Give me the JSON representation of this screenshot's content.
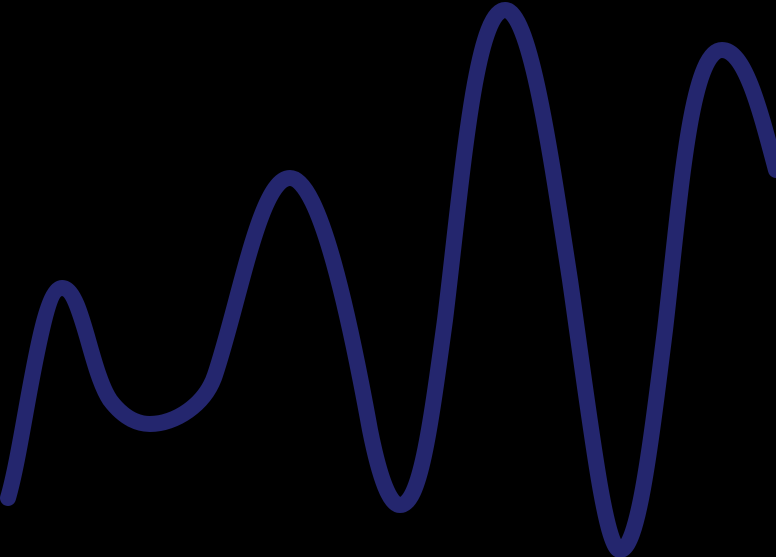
{
  "background_color": "#000000",
  "line_color": "#24266e",
  "icon_name": "wave-line-icon"
}
